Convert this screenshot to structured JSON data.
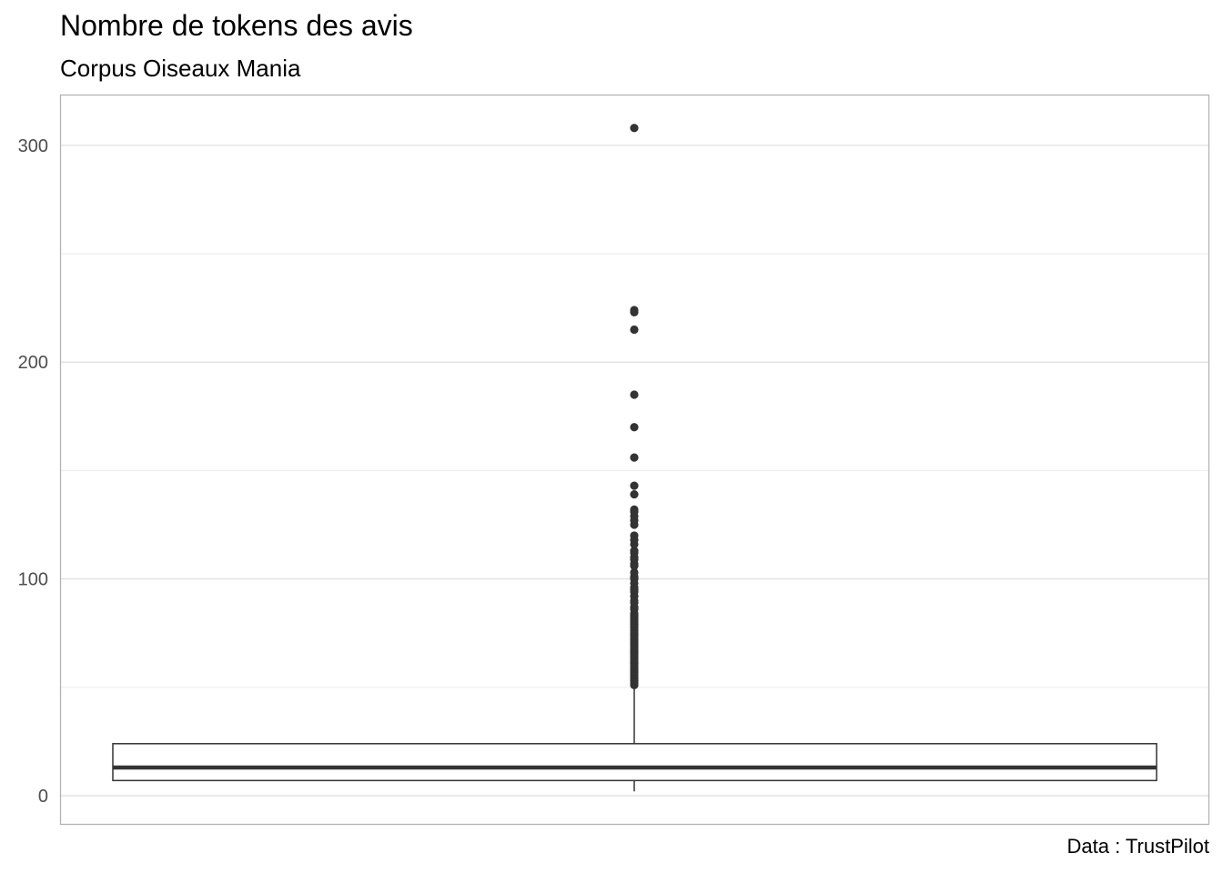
{
  "chart_data": {
    "type": "boxplot",
    "title": "Nombre de tokens des avis",
    "subtitle": "Corpus Oiseaux Mania",
    "caption": "Data : TrustPilot",
    "xlabel": "",
    "ylabel": "",
    "ylim": [
      -13,
      323
    ],
    "y_ticks": [
      0,
      100,
      200,
      300
    ],
    "y_tick_labels": [
      "0",
      "100",
      "200",
      "300"
    ],
    "y_minor_ticks": [
      50,
      150,
      250
    ],
    "grid": true,
    "box": {
      "min": 2,
      "q1": 7,
      "median": 13,
      "q3": 24,
      "whisker_low": 2,
      "whisker_high": 50
    },
    "outliers": [
      51,
      52,
      53,
      54,
      55,
      56,
      57,
      58,
      59,
      60,
      61,
      62,
      63,
      64,
      65,
      66,
      67,
      68,
      69,
      70,
      71,
      72,
      73,
      74,
      75,
      76,
      77,
      78,
      79,
      80,
      81,
      82,
      83,
      84,
      86,
      87,
      89,
      90,
      92,
      94,
      95,
      96,
      98,
      100,
      101,
      103,
      106,
      107,
      109,
      110,
      112,
      113,
      116,
      118,
      120,
      125,
      127,
      129,
      131,
      132,
      139,
      143,
      156,
      170,
      185,
      215,
      223,
      224,
      308
    ]
  }
}
